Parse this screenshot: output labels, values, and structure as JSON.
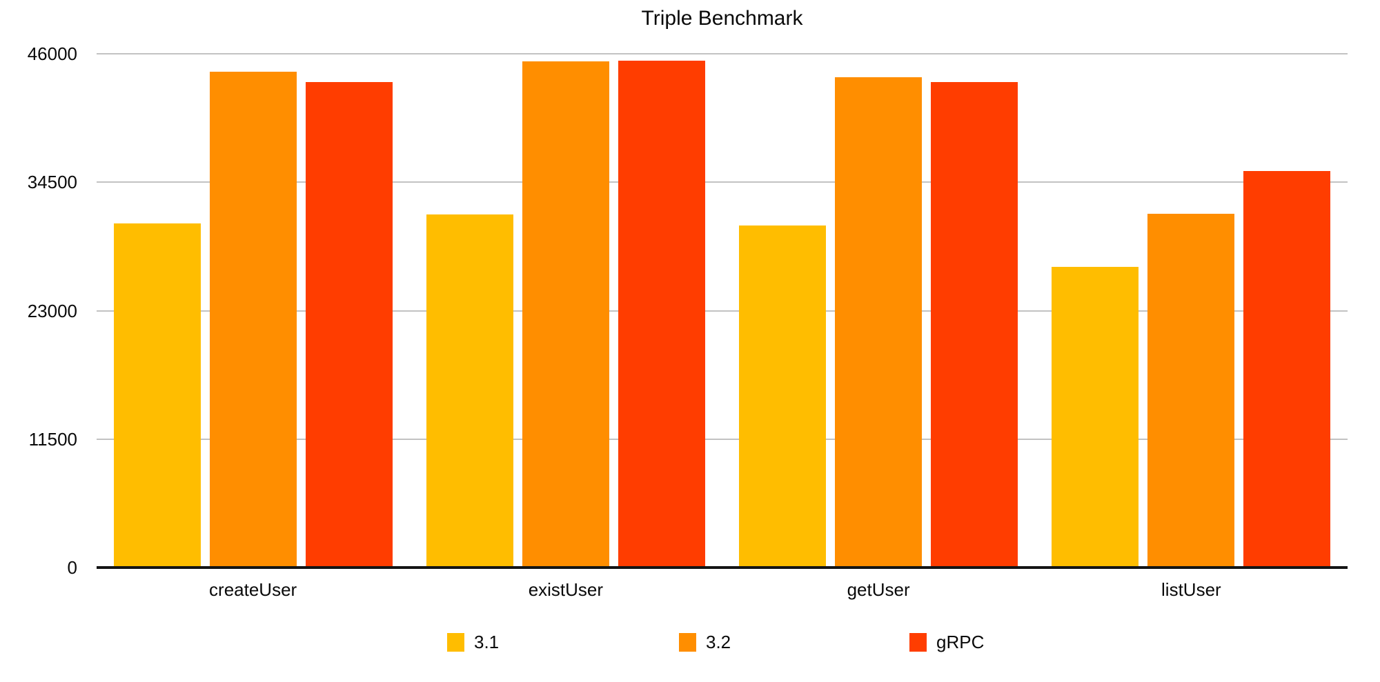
{
  "chart": {
    "title": "Triple Benchmark"
  },
  "chart_data": {
    "type": "bar",
    "title": "Triple Benchmark",
    "categories": [
      "createUser",
      "existUser",
      "getUser",
      "listUser"
    ],
    "series": [
      {
        "name": "3.1",
        "color": "#FFBD00",
        "values": [
          30800,
          31600,
          30600,
          26900
        ]
      },
      {
        "name": "3.2",
        "color": "#FF8E00",
        "values": [
          44400,
          45300,
          43900,
          31700
        ]
      },
      {
        "name": "gRPC",
        "color": "#FF3D00",
        "values": [
          43500,
          45400,
          43500,
          35500
        ]
      }
    ],
    "xlabel": "",
    "ylabel": "",
    "ylim": [
      0,
      46000
    ],
    "yticks": [
      0,
      11500,
      23000,
      34500,
      46000
    ],
    "grid": true,
    "legend_position": "bottom",
    "gridline_color": "#c2c2c2",
    "axis_line_color": "#141414"
  }
}
